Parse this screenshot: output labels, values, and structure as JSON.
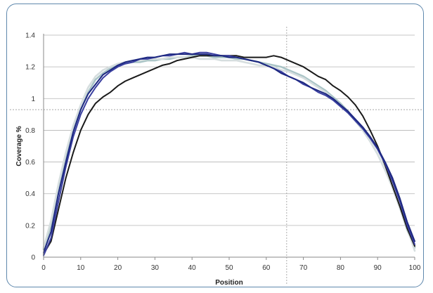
{
  "chart_data": {
    "type": "line",
    "title": "",
    "xlabel": "Position",
    "ylabel": "Coverage %",
    "xlim": [
      0,
      100
    ],
    "ylim": [
      0,
      1.4
    ],
    "x_ticks": [
      0,
      10,
      20,
      30,
      40,
      50,
      60,
      70,
      80,
      90,
      100
    ],
    "y_ticks": [
      0,
      0.2,
      0.4,
      0.6,
      0.8,
      1,
      1.2,
      1.4
    ],
    "y_tick_labels": [
      "0",
      "0.2",
      "0.4",
      "0.6",
      "0.8",
      "1",
      "1.2",
      "1.4"
    ],
    "grid": "horizontal",
    "legend": "none",
    "reference_lines": {
      "horizontal_y": 0.93,
      "vertical_x": 65.5
    },
    "x": [
      0,
      2,
      4,
      6,
      8,
      10,
      12,
      14,
      16,
      18,
      20,
      22,
      24,
      26,
      28,
      30,
      32,
      34,
      36,
      38,
      40,
      42,
      44,
      46,
      48,
      50,
      52,
      54,
      56,
      58,
      60,
      62,
      64,
      66,
      68,
      70,
      72,
      74,
      76,
      78,
      80,
      82,
      84,
      86,
      88,
      90,
      92,
      94,
      96,
      98,
      100
    ],
    "series": [
      {
        "color": "#a9c4c6",
        "values": [
          0.05,
          0.2,
          0.42,
          0.62,
          0.8,
          0.93,
          1.04,
          1.12,
          1.16,
          1.19,
          1.21,
          1.22,
          1.23,
          1.23,
          1.24,
          1.24,
          1.25,
          1.25,
          1.26,
          1.26,
          1.27,
          1.27,
          1.27,
          1.26,
          1.26,
          1.26,
          1.25,
          1.25,
          1.24,
          1.23,
          1.22,
          1.21,
          1.2,
          1.18,
          1.16,
          1.14,
          1.11,
          1.08,
          1.05,
          1.01,
          0.97,
          0.92,
          0.86,
          0.8,
          0.73,
          0.65,
          0.55,
          0.44,
          0.31,
          0.17,
          0.06
        ]
      },
      {
        "color": "#d6dedf",
        "values": [
          0.06,
          0.23,
          0.46,
          0.66,
          0.83,
          0.96,
          1.07,
          1.14,
          1.18,
          1.2,
          1.22,
          1.23,
          1.24,
          1.24,
          1.25,
          1.25,
          1.25,
          1.26,
          1.26,
          1.26,
          1.26,
          1.25,
          1.25,
          1.25,
          1.24,
          1.24,
          1.24,
          1.23,
          1.22,
          1.21,
          1.21,
          1.2,
          1.18,
          1.17,
          1.15,
          1.13,
          1.1,
          1.07,
          1.04,
          1.0,
          0.96,
          0.91,
          0.86,
          0.8,
          0.73,
          0.65,
          0.55,
          0.44,
          0.31,
          0.18,
          0.04
        ]
      },
      {
        "color": "#1a1a1a",
        "values": [
          0.02,
          0.1,
          0.3,
          0.5,
          0.66,
          0.8,
          0.9,
          0.97,
          1.01,
          1.04,
          1.08,
          1.11,
          1.13,
          1.15,
          1.17,
          1.19,
          1.21,
          1.22,
          1.24,
          1.25,
          1.26,
          1.27,
          1.27,
          1.27,
          1.27,
          1.27,
          1.27,
          1.26,
          1.26,
          1.26,
          1.26,
          1.27,
          1.26,
          1.24,
          1.22,
          1.2,
          1.17,
          1.14,
          1.12,
          1.08,
          1.05,
          1.01,
          0.96,
          0.89,
          0.8,
          0.7,
          0.58,
          0.45,
          0.32,
          0.18,
          0.07
        ]
      },
      {
        "color": "#3a3fa0",
        "values": [
          0.01,
          0.12,
          0.35,
          0.57,
          0.76,
          0.9,
          1.0,
          1.07,
          1.13,
          1.17,
          1.2,
          1.22,
          1.23,
          1.25,
          1.25,
          1.26,
          1.27,
          1.27,
          1.28,
          1.29,
          1.28,
          1.29,
          1.29,
          1.28,
          1.27,
          1.27,
          1.26,
          1.25,
          1.24,
          1.23,
          1.21,
          1.19,
          1.17,
          1.14,
          1.12,
          1.09,
          1.07,
          1.04,
          1.02,
          0.99,
          0.95,
          0.91,
          0.86,
          0.81,
          0.75,
          0.68,
          0.59,
          0.48,
          0.35,
          0.2,
          0.08
        ]
      },
      {
        "color": "#1d2880",
        "values": [
          0.03,
          0.16,
          0.4,
          0.6,
          0.79,
          0.93,
          1.03,
          1.09,
          1.15,
          1.18,
          1.21,
          1.23,
          1.24,
          1.25,
          1.26,
          1.26,
          1.27,
          1.28,
          1.28,
          1.28,
          1.28,
          1.28,
          1.28,
          1.27,
          1.27,
          1.26,
          1.26,
          1.25,
          1.24,
          1.23,
          1.21,
          1.19,
          1.16,
          1.14,
          1.12,
          1.1,
          1.07,
          1.05,
          1.03,
          1.0,
          0.96,
          0.92,
          0.87,
          0.82,
          0.76,
          0.69,
          0.6,
          0.5,
          0.37,
          0.22,
          0.1
        ]
      }
    ]
  }
}
